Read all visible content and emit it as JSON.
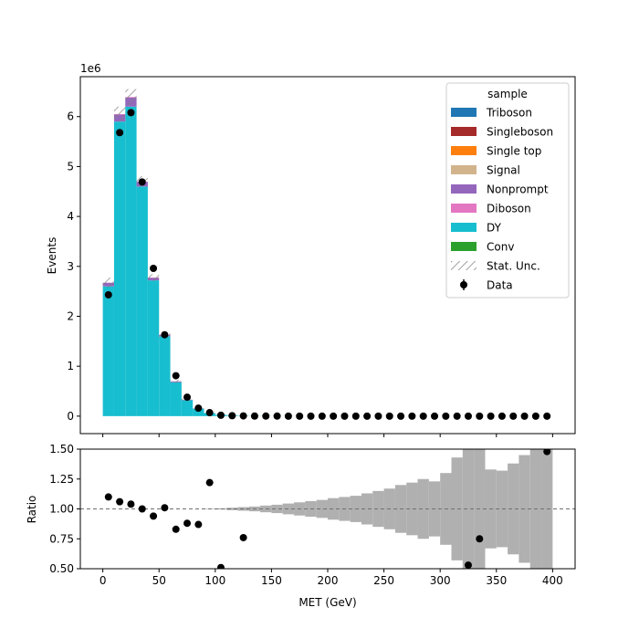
{
  "chart_data": [
    {
      "type": "bar",
      "stacked": true,
      "multiplier_label": "1e6",
      "xlabel": "",
      "ylabel": "Events",
      "xlim": [
        -20,
        420
      ],
      "ylim": [
        -0.35,
        6.8
      ],
      "y_unit_scale": 1000000,
      "xticks": [
        0,
        50,
        100,
        150,
        200,
        250,
        300,
        350,
        400
      ],
      "xtick_labels_visible": false,
      "yticks": [
        0,
        1,
        2,
        3,
        4,
        5,
        6
      ],
      "grid": false,
      "bin_edges": [
        0,
        10,
        20,
        30,
        40,
        50,
        60,
        70,
        80,
        90,
        100,
        110,
        120,
        130,
        140,
        150,
        160,
        170,
        180,
        190,
        200,
        210,
        220,
        230,
        240,
        250,
        260,
        270,
        280,
        290,
        300,
        310,
        320,
        330,
        340,
        350,
        360,
        370,
        380,
        390,
        400
      ],
      "legend": {
        "title": "sample",
        "placement": "top-right",
        "entries": [
          {
            "label": "Triboson",
            "kind": "patch",
            "color": "#1f77b4"
          },
          {
            "label": "Singleboson",
            "kind": "patch",
            "color": "#a52a2a"
          },
          {
            "label": "Single top",
            "kind": "patch",
            "color": "#ff7f0e"
          },
          {
            "label": "Signal",
            "kind": "patch",
            "color": "#d2b48c"
          },
          {
            "label": "Nonprompt",
            "kind": "patch",
            "color": "#9467bd"
          },
          {
            "label": "Diboson",
            "kind": "patch",
            "color": "#e377c2"
          },
          {
            "label": "DY",
            "kind": "patch",
            "color": "#17becf"
          },
          {
            "label": "Conv",
            "kind": "patch",
            "color": "#2ca02c"
          },
          {
            "label": "Stat. Unc.",
            "kind": "hatch",
            "color": "#808080"
          },
          {
            "label": "Data",
            "kind": "errorbar",
            "color": "#000000"
          }
        ]
      },
      "series": [
        {
          "name": "DY",
          "color": "#17becf",
          "values": [
            2.6,
            5.9,
            6.2,
            4.6,
            2.72,
            1.6,
            0.68,
            0.32,
            0.15,
            0.06,
            0.025,
            0.012,
            0.006,
            0.003,
            0.002,
            0.001,
            0.001,
            0,
            0,
            0,
            0,
            0,
            0,
            0,
            0,
            0,
            0,
            0,
            0,
            0,
            0,
            0,
            0,
            0,
            0,
            0,
            0,
            0,
            0,
            0
          ]
        },
        {
          "name": "Nonprompt",
          "color": "#9467bd",
          "values": [
            0.07,
            0.14,
            0.18,
            0.09,
            0.05,
            0.03,
            0.015,
            0.008,
            0.004,
            0.002,
            0.001,
            0,
            0,
            0,
            0,
            0,
            0,
            0,
            0,
            0,
            0,
            0,
            0,
            0,
            0,
            0,
            0,
            0,
            0,
            0,
            0,
            0,
            0,
            0,
            0,
            0,
            0,
            0,
            0,
            0
          ]
        },
        {
          "name": "Diboson",
          "color": "#e377c2",
          "values": [
            0.005,
            0.01,
            0.012,
            0.008,
            0.006,
            0.004,
            0.003,
            0.002,
            0.001,
            0.001,
            0,
            0,
            0,
            0,
            0,
            0,
            0,
            0,
            0,
            0,
            0,
            0,
            0,
            0,
            0,
            0,
            0,
            0,
            0,
            0,
            0,
            0,
            0,
            0,
            0,
            0,
            0,
            0,
            0,
            0
          ]
        }
      ],
      "stat_unc": [
        0.1,
        0.15,
        0.16,
        0.11,
        0.07,
        0.05,
        0.03,
        0.02,
        0.01,
        0.005,
        0.003,
        0.002,
        0.001,
        0.001,
        0,
        0,
        0,
        0,
        0,
        0,
        0,
        0,
        0,
        0,
        0,
        0,
        0,
        0,
        0,
        0,
        0,
        0,
        0,
        0,
        0,
        0,
        0,
        0,
        0,
        0
      ],
      "data_points": {
        "name": "Data",
        "x": [
          5,
          15,
          25,
          35,
          45,
          55,
          65,
          75,
          85,
          95,
          105,
          115,
          125,
          135,
          145,
          155,
          165,
          175,
          185,
          195,
          205,
          215,
          225,
          235,
          245,
          255,
          265,
          275,
          285,
          295,
          305,
          315,
          325,
          335,
          345,
          355,
          365,
          375,
          385,
          395
        ],
        "y": [
          2.43,
          5.68,
          6.08,
          4.69,
          2.96,
          1.63,
          0.81,
          0.38,
          0.16,
          0.07,
          0.018,
          0.009,
          0.005,
          0.002,
          0.001,
          0.001,
          0,
          0,
          0,
          0,
          0,
          0,
          0,
          0,
          0,
          0,
          0,
          0,
          0,
          0,
          0,
          0,
          0,
          0,
          0,
          0,
          0,
          0,
          0,
          0
        ]
      }
    },
    {
      "type": "scatter",
      "xlabel": "MET (GeV)",
      "ylabel": "Ratio",
      "xlim": [
        -20,
        420
      ],
      "ylim": [
        0.5,
        1.5
      ],
      "xticks": [
        0,
        50,
        100,
        150,
        200,
        250,
        300,
        350,
        400
      ],
      "xtick_labels": [
        "0",
        "50",
        "100",
        "150",
        "200",
        "250",
        "300",
        "350",
        "400"
      ],
      "yticks": [
        0.5,
        0.75,
        1.0,
        1.25,
        1.5
      ],
      "ytick_labels": [
        "0.50",
        "0.75",
        "1.00",
        "1.25",
        "1.50"
      ],
      "reference_line": 1.0,
      "grid": false,
      "bin_edges": [
        0,
        10,
        20,
        30,
        40,
        50,
        60,
        70,
        80,
        90,
        100,
        110,
        120,
        130,
        140,
        150,
        160,
        170,
        180,
        190,
        200,
        210,
        220,
        230,
        240,
        250,
        260,
        270,
        280,
        290,
        300,
        310,
        320,
        330,
        340,
        350,
        360,
        370,
        380,
        390,
        400
      ],
      "unc_band_halfwidth": [
        0,
        0,
        0,
        0,
        0,
        0,
        0,
        0,
        0,
        0.002,
        0.005,
        0.01,
        0.015,
        0.02,
        0.028,
        0.035,
        0.045,
        0.055,
        0.065,
        0.075,
        0.09,
        0.1,
        0.11,
        0.13,
        0.15,
        0.17,
        0.2,
        0.22,
        0.25,
        0.23,
        0.3,
        0.43,
        0.55,
        0.6,
        0.33,
        0.32,
        0.38,
        0.45,
        0.7,
        0.6
      ],
      "unc_band_color": "#b0b0b0",
      "x": [
        5,
        15,
        25,
        35,
        45,
        55,
        65,
        75,
        85,
        95,
        105,
        125,
        325,
        335,
        395
      ],
      "y": [
        1.1,
        1.06,
        1.04,
        1.0,
        0.94,
        1.01,
        0.83,
        0.88,
        0.87,
        1.22,
        0.51,
        0.76,
        0.53,
        0.75,
        1.48
      ]
    }
  ]
}
